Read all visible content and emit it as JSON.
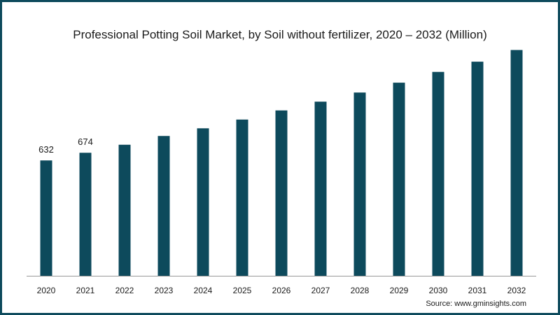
{
  "title": "Professional Potting Soil Market, by Soil without fertilizer, 2020 – 2032 (Million)",
  "source": "Source: www.gminsights.com",
  "colors": {
    "bar": "#0d4a5c",
    "border": "#0d4a5c",
    "axis": "#999999",
    "text": "#1a1a1a"
  },
  "chart_data": {
    "type": "bar",
    "title": "Professional Potting Soil Market, by Soil without fertilizer, 2020 – 2032 (Million)",
    "xlabel": "",
    "ylabel": "",
    "grid": false,
    "categories": [
      "2020",
      "2021",
      "2022",
      "2023",
      "2024",
      "2025",
      "2026",
      "2027",
      "2028",
      "2029",
      "2030",
      "2031",
      "2032"
    ],
    "values": [
      632,
      674,
      718,
      766,
      808,
      856,
      906,
      954,
      1004,
      1058,
      1117,
      1173,
      1237
    ],
    "data_labels": [
      "632",
      "674",
      "",
      "",
      "",
      "",
      "",
      "",
      "",
      "",
      "",
      "",
      ""
    ],
    "ylim": [
      0,
      1300
    ]
  }
}
